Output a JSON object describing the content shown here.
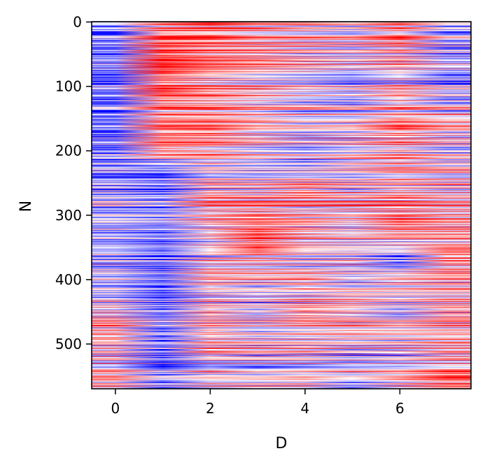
{
  "chart_data": {
    "type": "heatmap",
    "title": "",
    "xlabel": "D",
    "ylabel": "N",
    "xlim": [
      -0.5,
      7.5
    ],
    "ylim": [
      569.5,
      -0.5
    ],
    "x_ticks": [
      0,
      2,
      4,
      6
    ],
    "x_tick_labels": [
      "0",
      "2",
      "4",
      "6"
    ],
    "y_ticks": [
      0,
      100,
      200,
      300,
      400,
      500
    ],
    "y_tick_labels": [
      "0",
      "100",
      "200",
      "300",
      "400",
      "500"
    ],
    "n_rows": 570,
    "n_cols": 8,
    "colormap": "bwr",
    "colors": {
      "low": "#0000ff",
      "mid": "#ffffff",
      "high": "#ff0000"
    },
    "value_range": [
      -1,
      1
    ],
    "interpolation": "bilinear",
    "column_profile": [
      {
        "n": 0,
        "values": [
          -0.7,
          0.1,
          0.3,
          0.1,
          0.0,
          -0.2,
          0.2,
          -0.5
        ]
      },
      {
        "n": 25,
        "values": [
          -0.6,
          0.6,
          0.5,
          0.2,
          0.1,
          0.0,
          0.5,
          -0.4
        ]
      },
      {
        "n": 50,
        "values": [
          -0.6,
          0.8,
          0.5,
          0.3,
          0.1,
          -0.1,
          0.2,
          -0.4
        ]
      },
      {
        "n": 80,
        "values": [
          -0.5,
          0.9,
          0.4,
          0.2,
          0.0,
          -0.2,
          0.1,
          -0.3
        ]
      },
      {
        "n": 110,
        "values": [
          -0.6,
          0.7,
          0.3,
          0.1,
          -0.1,
          -0.2,
          0.2,
          -0.3
        ]
      },
      {
        "n": 140,
        "values": [
          -0.4,
          0.5,
          0.5,
          0.2,
          0.0,
          -0.1,
          0.3,
          0.1
        ]
      },
      {
        "n": 165,
        "values": [
          -0.5,
          0.6,
          0.6,
          0.3,
          0.1,
          0.2,
          0.6,
          0.3
        ]
      },
      {
        "n": 195,
        "values": [
          -0.4,
          0.7,
          0.4,
          0.1,
          -0.1,
          0.0,
          0.3,
          -0.1
        ]
      },
      {
        "n": 225,
        "values": [
          -0.3,
          -0.4,
          0.0,
          -0.2,
          -0.3,
          0.1,
          0.3,
          0.2
        ]
      },
      {
        "n": 255,
        "values": [
          -0.4,
          -0.7,
          0.1,
          0.0,
          0.4,
          0.0,
          0.2,
          0.0
        ]
      },
      {
        "n": 285,
        "values": [
          -0.3,
          -0.4,
          0.3,
          0.3,
          0.2,
          0.2,
          0.3,
          0.2
        ]
      },
      {
        "n": 315,
        "values": [
          -0.4,
          -0.5,
          0.0,
          0.4,
          0.2,
          -0.1,
          0.5,
          0.2
        ]
      },
      {
        "n": 340,
        "values": [
          -0.3,
          -0.6,
          0.1,
          0.8,
          0.2,
          0.0,
          0.2,
          0.3
        ]
      },
      {
        "n": 370,
        "values": [
          -0.2,
          -0.5,
          0.1,
          0.2,
          -0.1,
          0.1,
          -0.5,
          0.5
        ]
      },
      {
        "n": 400,
        "values": [
          -0.3,
          -0.7,
          0.2,
          0.0,
          0.2,
          -0.3,
          0.1,
          0.2
        ]
      },
      {
        "n": 425,
        "values": [
          -0.2,
          -0.7,
          0.0,
          -0.1,
          0.0,
          0.2,
          0.1,
          0.1
        ]
      },
      {
        "n": 450,
        "values": [
          0.1,
          -0.5,
          0.3,
          0.0,
          0.5,
          0.1,
          -0.2,
          0.3
        ]
      },
      {
        "n": 480,
        "values": [
          0.2,
          -0.6,
          0.2,
          -0.2,
          0.0,
          0.2,
          0.1,
          0.2
        ]
      },
      {
        "n": 510,
        "values": [
          0.1,
          -0.7,
          0.2,
          0.2,
          0.1,
          -0.2,
          -0.1,
          0.2
        ]
      },
      {
        "n": 540,
        "values": [
          0.2,
          -0.4,
          0.0,
          -0.2,
          -0.1,
          0.1,
          0.2,
          0.5
        ]
      },
      {
        "n": 569,
        "values": [
          0.3,
          -0.5,
          0.1,
          0.2,
          0.2,
          -0.5,
          0.1,
          0.6
        ]
      }
    ]
  }
}
